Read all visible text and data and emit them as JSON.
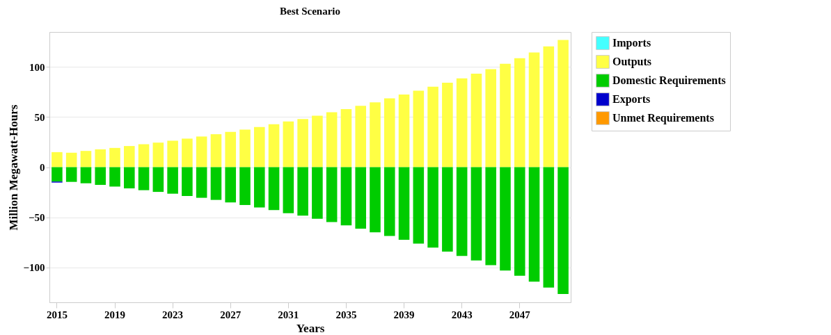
{
  "chart_data": {
    "type": "bar",
    "title": "Best Scenario",
    "xlabel": "Years",
    "ylabel": "Million Megawatt-Hours",
    "categories": [
      "2015",
      null,
      null,
      null,
      "2019",
      null,
      null,
      null,
      "2023",
      null,
      null,
      null,
      "2027",
      null,
      null,
      null,
      "2031",
      null,
      null,
      null,
      "2035",
      null,
      null,
      null,
      "2039",
      null,
      null,
      null,
      "2043",
      null,
      null,
      null,
      "2047",
      null,
      null,
      null
    ],
    "stacked": true,
    "ylim": [
      -135,
      135
    ],
    "yticks": [
      -100,
      -50,
      0,
      50,
      100
    ],
    "grid": "y",
    "legend": "right",
    "series": [
      {
        "name": "Imports",
        "color": "#44ffff",
        "values": [
          null,
          null,
          null,
          null,
          null,
          null,
          null,
          null,
          null,
          null,
          null,
          null,
          null,
          null,
          null,
          null,
          null,
          null,
          null,
          null,
          null,
          null,
          null,
          null,
          null,
          null,
          null,
          null,
          null,
          null,
          null,
          null,
          null,
          null,
          null,
          null
        ]
      },
      {
        "name": "Outputs",
        "color": "#ffff44",
        "values": [
          15.0,
          14.4,
          16.2,
          17.8,
          19.2,
          21.1,
          22.9,
          24.5,
          26.4,
          28.5,
          30.6,
          32.9,
          35.2,
          37.5,
          40.0,
          42.8,
          45.6,
          48.1,
          51.4,
          54.9,
          57.9,
          61.3,
          64.8,
          68.8,
          72.5,
          76.4,
          80.3,
          84.3,
          88.7,
          93.3,
          97.9,
          103.2,
          108.8,
          114.6,
          120.6,
          127.1
        ]
      },
      {
        "name": "Domestic Requirements",
        "color": "#00cc00",
        "values": [
          -14.4,
          -14.7,
          -16.1,
          -17.7,
          -19.4,
          -21.2,
          -23.0,
          -24.7,
          -26.5,
          -28.8,
          -30.6,
          -32.7,
          -35.3,
          -37.8,
          -40.3,
          -42.9,
          -45.9,
          -48.4,
          -51.6,
          -54.8,
          -58.1,
          -61.5,
          -65.0,
          -68.7,
          -72.6,
          -76.3,
          -80.4,
          -84.3,
          -88.7,
          -93.1,
          -97.9,
          -103.2,
          -108.5,
          -114.3,
          -120.3,
          -126.7
        ]
      },
      {
        "name": "Exports",
        "color": "#0000cc",
        "values": [
          -1.0,
          null,
          null,
          null,
          null,
          null,
          null,
          null,
          null,
          null,
          null,
          null,
          null,
          null,
          null,
          null,
          null,
          null,
          null,
          null,
          null,
          null,
          null,
          null,
          null,
          null,
          null,
          null,
          null,
          null,
          null,
          null,
          null,
          null,
          null,
          null
        ]
      },
      {
        "name": "Unmet Requirements",
        "color": "#ff9900",
        "values": [
          null,
          null,
          null,
          null,
          null,
          null,
          null,
          null,
          null,
          null,
          null,
          null,
          null,
          null,
          null,
          null,
          null,
          null,
          null,
          null,
          null,
          null,
          null,
          null,
          null,
          null,
          null,
          null,
          null,
          null,
          null,
          null,
          null,
          null,
          null,
          null
        ]
      }
    ]
  }
}
